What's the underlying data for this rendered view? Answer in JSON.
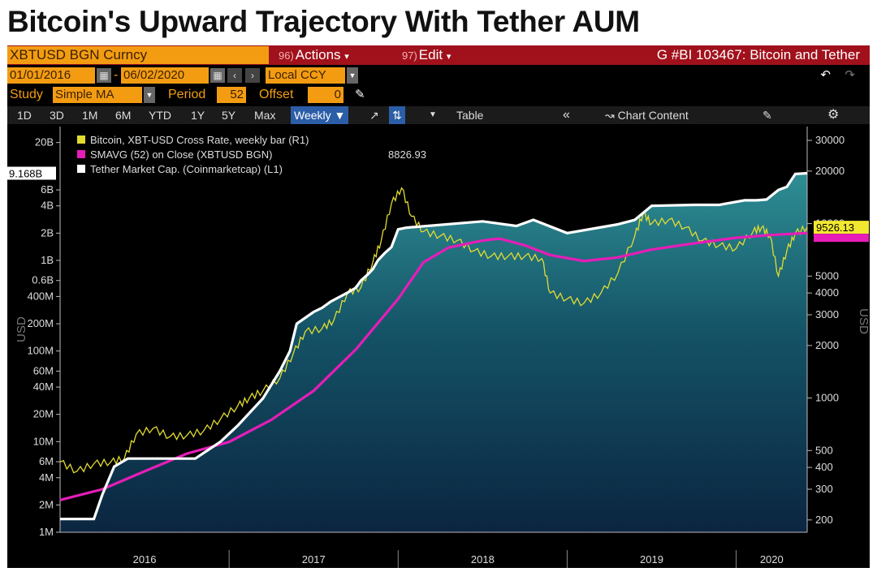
{
  "headline": "Bitcoin's Upward Trajectory With Tether AUM",
  "toolbar": {
    "ticker": "XBTUSD BGN Curncy",
    "actions_num": "96)",
    "actions_label": "Actions",
    "edit_num": "97)",
    "edit_label": "Edit",
    "graph_title": "G #BI 103467: Bitcoin and Tether",
    "start_date": "01/01/2016",
    "end_date": "06/02/2020",
    "currency": "Local CCY",
    "study_label": "Study",
    "study_value": "Simple MA",
    "period_label": "Period",
    "period_value": "52",
    "offset_label": "Offset",
    "offset_value": "0",
    "ranges": [
      "1D",
      "3D",
      "1M",
      "6M",
      "YTD",
      "1Y",
      "5Y",
      "Max"
    ],
    "frequency": "Weekly",
    "table_label": "Table",
    "chart_content_label": "Chart Content"
  },
  "colors": {
    "bitcoin": "#e3dc2f",
    "sma": "#e61db8",
    "tether": "#ffffff",
    "accent": "#f39c12",
    "titlebar": "#a1111b"
  },
  "chart_data": {
    "type": "line",
    "title": "Bitcoin's Upward Trajectory With Tether AUM",
    "x_categories": [
      "2016",
      "2017",
      "2018",
      "2019",
      "2020"
    ],
    "x_range": [
      2016.0,
      2020.42
    ],
    "legend": [
      {
        "name": "Bitcoin, XBT-USD Cross Rate, weekly bar (R1)",
        "value": ""
      },
      {
        "name": "SMAVG (52)  on Close (XBTUSD BGN)",
        "value": "8826.93"
      },
      {
        "name": "Tether Market Cap. (Coinmarketcap) (L1)",
        "value": ""
      }
    ],
    "left_axis": {
      "label": "USD",
      "scale": "log",
      "range": [
        1000000,
        30000000000
      ],
      "tick_values": [
        1000000,
        2000000,
        4000000,
        6000000,
        10000000,
        20000000,
        40000000,
        60000000,
        100000000,
        200000000,
        400000000,
        600000000,
        1000000000,
        2000000000,
        4000000000,
        6000000000,
        20000000000
      ],
      "tick_labels": [
        "1M",
        "2M",
        "4M",
        "6M",
        "10M",
        "20M",
        "40M",
        "60M",
        "100M",
        "200M",
        "400M",
        "0.6B",
        "1B",
        "2B",
        "4B",
        "6B",
        "20B"
      ],
      "last_value_tag": "9.168B"
    },
    "right_axis": {
      "label": "USD",
      "scale": "log",
      "range": [
        170,
        36000
      ],
      "tick_values": [
        200,
        300,
        400,
        500,
        1000,
        2000,
        3000,
        4000,
        5000,
        10000,
        20000,
        30000
      ],
      "tick_labels": [
        "200",
        "300",
        "400",
        "500",
        "1000",
        "2000",
        "3000",
        "4000",
        "5000",
        "10000",
        "20000",
        "30000"
      ],
      "last_value_tag": "9526.13"
    },
    "series": [
      {
        "name": "Bitcoin, XBT-USD Cross Rate, weekly bar (R1)",
        "axis": "right",
        "x": [
          2016.0,
          2016.1,
          2016.2,
          2016.3,
          2016.38,
          2016.45,
          2016.55,
          2016.65,
          2016.75,
          2016.85,
          2016.95,
          2017.05,
          2017.12,
          2017.2,
          2017.3,
          2017.38,
          2017.45,
          2017.55,
          2017.62,
          2017.7,
          2017.78,
          2017.85,
          2017.9,
          2017.96,
          2018.02,
          2018.08,
          2018.15,
          2018.25,
          2018.35,
          2018.45,
          2018.55,
          2018.65,
          2018.75,
          2018.85,
          2018.9,
          2019.0,
          2019.1,
          2019.2,
          2019.3,
          2019.4,
          2019.45,
          2019.5,
          2019.6,
          2019.7,
          2019.8,
          2019.9,
          2020.0,
          2020.1,
          2020.15,
          2020.2,
          2020.25,
          2020.3,
          2020.35,
          2020.42
        ],
        "y": [
          430,
          380,
          420,
          430,
          450,
          620,
          670,
          600,
          610,
          650,
          760,
          900,
          1000,
          1100,
          1300,
          1800,
          2400,
          2500,
          2800,
          4000,
          4300,
          6000,
          8000,
          13000,
          16000,
          11000,
          9000,
          8500,
          8000,
          7000,
          6500,
          6500,
          6500,
          6300,
          4000,
          3700,
          3500,
          4000,
          5200,
          8500,
          11500,
          10000,
          10500,
          9500,
          8000,
          7500,
          7200,
          9000,
          9500,
          8500,
          5000,
          7000,
          8800,
          9526
        ]
      },
      {
        "name": "SMAVG (52)  on Close (XBTUSD BGN)",
        "axis": "right",
        "x": [
          2016.0,
          2016.25,
          2016.5,
          2016.75,
          2017.0,
          2017.25,
          2017.5,
          2017.75,
          2018.0,
          2018.15,
          2018.3,
          2018.5,
          2018.6,
          2018.75,
          2018.9,
          2019.1,
          2019.3,
          2019.5,
          2019.75,
          2020.0,
          2020.2,
          2020.42
        ],
        "y": [
          260,
          300,
          380,
          480,
          560,
          750,
          1100,
          1900,
          3700,
          6000,
          7300,
          8000,
          8200,
          7500,
          6600,
          6100,
          6400,
          7100,
          7700,
          8300,
          8600,
          8826.93
        ]
      },
      {
        "name": "Tether Market Cap. (Coinmarketcap) (L1)",
        "axis": "left",
        "x": [
          2016.0,
          2016.12,
          2016.2,
          2016.25,
          2016.32,
          2016.4,
          2016.8,
          2016.95,
          2017.05,
          2017.2,
          2017.3,
          2017.36,
          2017.4,
          2017.5,
          2017.55,
          2017.6,
          2017.7,
          2017.75,
          2017.78,
          2017.82,
          2017.85,
          2017.88,
          2017.92,
          2017.96,
          2018.0,
          2018.05,
          2018.5,
          2018.7,
          2018.8,
          2019.0,
          2019.3,
          2019.4,
          2019.5,
          2019.75,
          2019.9,
          2020.05,
          2020.12,
          2020.18,
          2020.25,
          2020.3,
          2020.35,
          2020.42
        ],
        "y": [
          1400000,
          1400000,
          1400000,
          2600000,
          5300000,
          6500000,
          6500000,
          10000000,
          15000000,
          30000000,
          60000000,
          100000000,
          200000000,
          270000000,
          300000000,
          350000000,
          440000000,
          500000000,
          600000000,
          700000000,
          800000000,
          1000000000,
          1200000000,
          1400000000,
          2200000000,
          2300000000,
          2700000000,
          2400000000,
          2800000000,
          2000000000,
          2500000000,
          2800000000,
          4000000000,
          4100000000,
          4100000000,
          4600000000,
          4600000000,
          4700000000,
          6000000000,
          6500000000,
          9000000000,
          9168000000
        ]
      }
    ]
  }
}
